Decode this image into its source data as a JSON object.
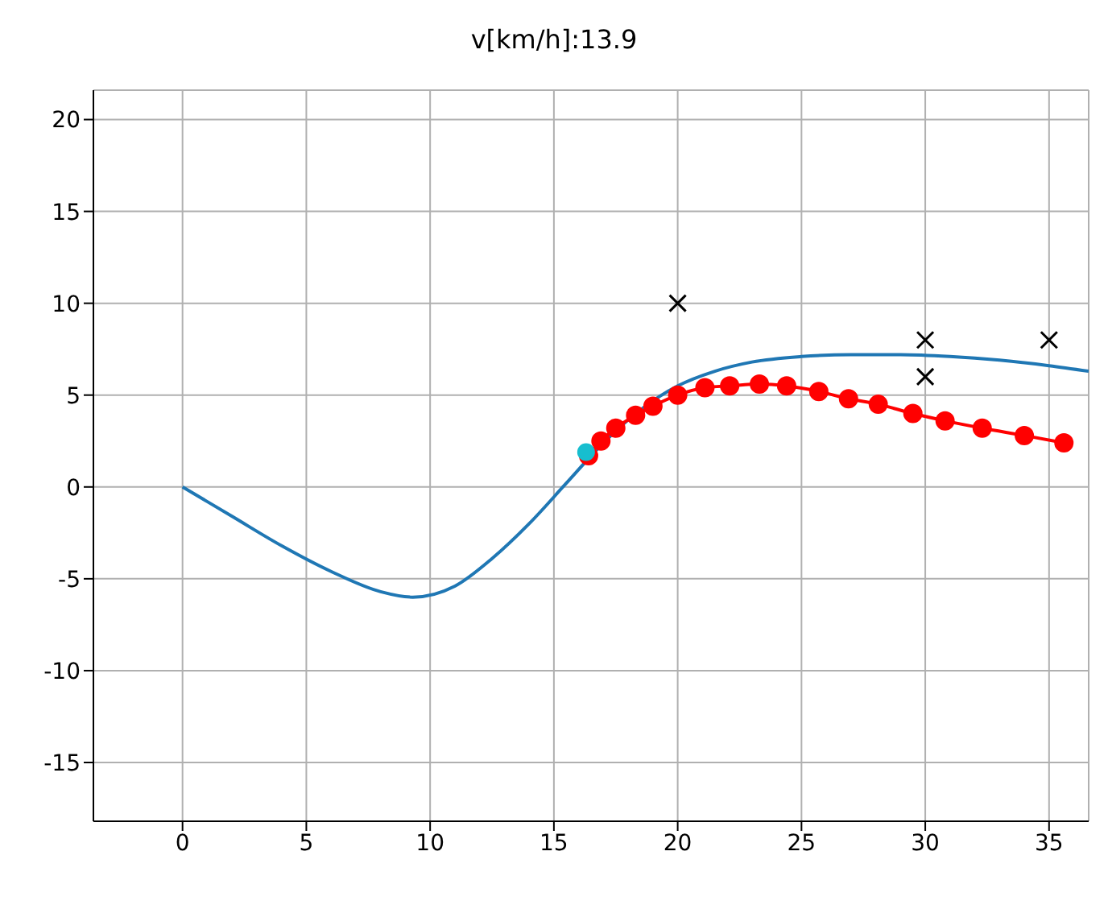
{
  "chart_data": {
    "type": "line",
    "title": "v[km/h]:13.9",
    "xlim": [
      -3.6,
      36.6
    ],
    "xticks": [
      0,
      5,
      10,
      15,
      20,
      25,
      30,
      35
    ],
    "ylim": [
      -18.2,
      21.6
    ],
    "yticks": [
      -15,
      -10,
      -5,
      0,
      5,
      10,
      15,
      20
    ],
    "grid": true,
    "series": [
      {
        "color": "#1f77b4",
        "marker": "none",
        "x": [
          0,
          2,
          4,
          6,
          8,
          9.3,
          11,
          12.5,
          14,
          15.5,
          17,
          18.5,
          20,
          21.5,
          23,
          25,
          27,
          29,
          31,
          33,
          35,
          36.6
        ],
        "values": [
          0,
          -1.6,
          -3.2,
          -4.6,
          -5.7,
          -6,
          -5.4,
          -3.9,
          -2,
          0.2,
          2.4,
          4.2,
          5.5,
          6.3,
          6.8,
          7.1,
          7.2,
          7.2,
          7.1,
          6.9,
          6.6,
          6.3
        ]
      },
      {
        "color": "#ff0000",
        "marker": "circle",
        "x": [
          16.4,
          16.9,
          17.5,
          18.3,
          19.0,
          20.0,
          21.1,
          22.1,
          23.3,
          24.4,
          25.7,
          26.9,
          28.1,
          29.5,
          30.8,
          32.3,
          34.0,
          35.6
        ],
        "values": [
          1.7,
          2.5,
          3.2,
          3.9,
          4.4,
          5.0,
          5.4,
          5.5,
          5.6,
          5.5,
          5.2,
          4.8,
          4.5,
          4.0,
          3.6,
          3.2,
          2.8,
          2.4
        ]
      },
      {
        "type": "scatter",
        "color": "#17becf",
        "marker": "circle",
        "x": [
          16.3
        ],
        "values": [
          1.9
        ]
      },
      {
        "type": "scatter",
        "color": "#000000",
        "marker": "cross",
        "x": [
          20,
          30,
          30,
          35
        ],
        "values": [
          10,
          8,
          6,
          8
        ]
      }
    ]
  }
}
